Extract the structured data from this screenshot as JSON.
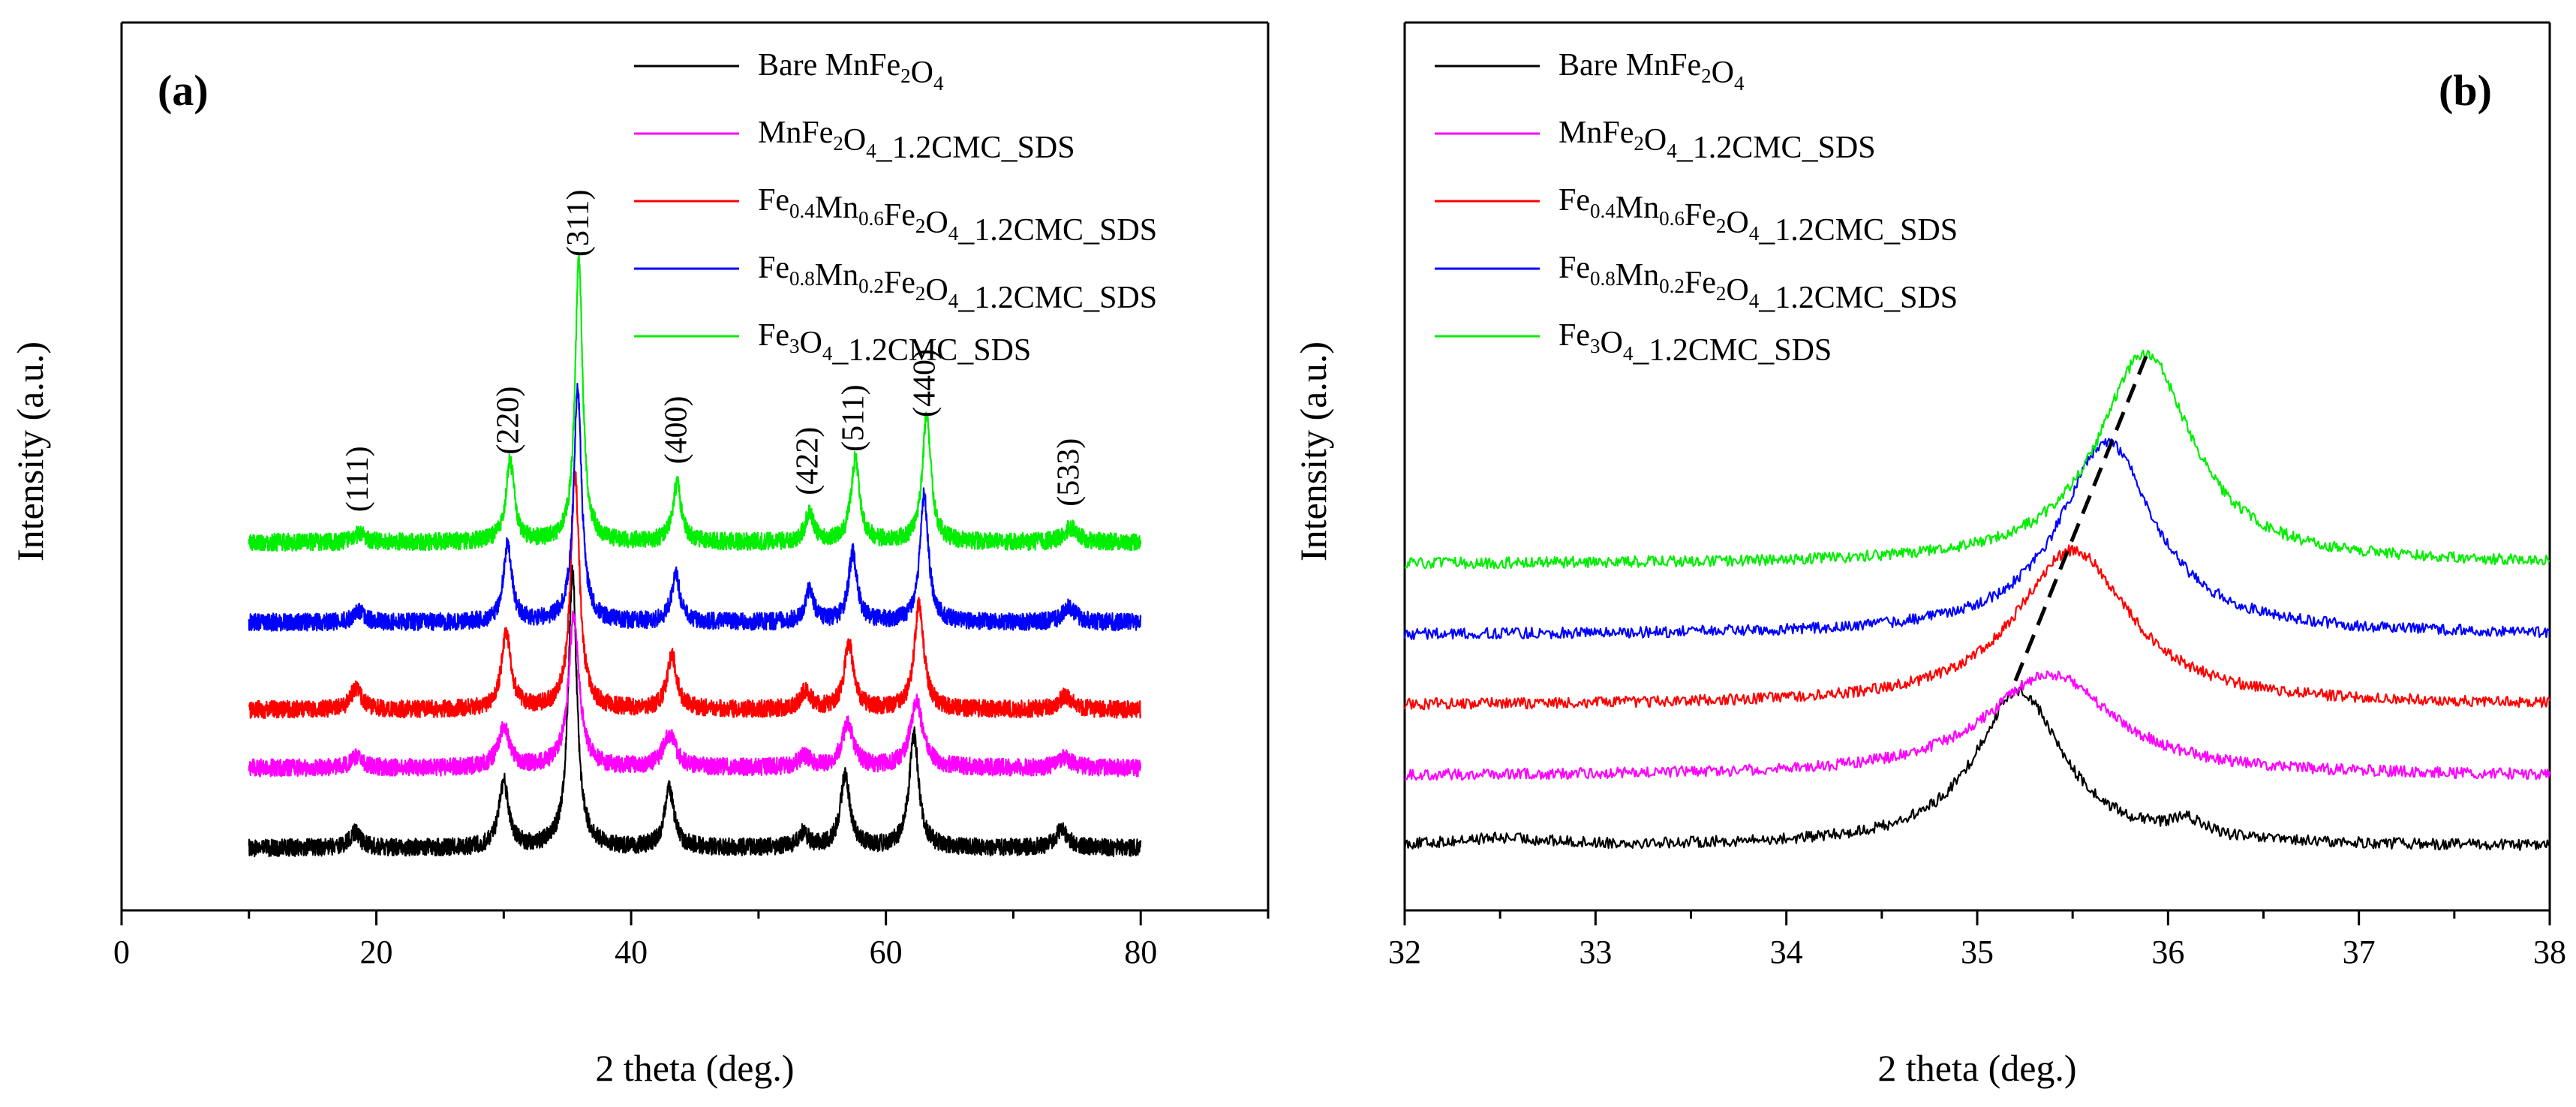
{
  "chart_data": [
    {
      "type": "line",
      "panel_label": "(a)",
      "title": "",
      "xlabel": "2 theta (deg.)",
      "ylabel": "Intensity (a.u.)",
      "xlim": [
        0,
        90
      ],
      "xticks": [
        "0",
        "20",
        "40",
        "60",
        "80"
      ],
      "yticks": [],
      "legend_position": "top-right",
      "x_range_measured": [
        10,
        80
      ],
      "series": [
        {
          "name": "Bare MnFe2O4",
          "color": "#000000",
          "baseline": 0.0,
          "noise": 0.12,
          "peaks": [
            [
              18.3,
              0.22,
              0.5
            ],
            [
              30.0,
              0.9,
              0.45
            ],
            [
              35.4,
              3.8,
              0.4
            ],
            [
              43.0,
              0.8,
              0.45
            ],
            [
              53.5,
              0.2,
              0.5
            ],
            [
              56.8,
              1.0,
              0.45
            ],
            [
              62.2,
              1.55,
              0.45
            ],
            [
              73.8,
              0.25,
              0.6
            ]
          ]
        },
        {
          "name": "MnFe2O4_1.2CMC_SDS",
          "color": "#ff00ff",
          "baseline": 1.1,
          "noise": 0.12,
          "peaks": [
            [
              18.5,
              0.15,
              0.6
            ],
            [
              30.0,
              0.55,
              0.55
            ],
            [
              35.5,
              2.1,
              0.5
            ],
            [
              43.0,
              0.45,
              0.6
            ],
            [
              53.6,
              0.15,
              0.6
            ],
            [
              57.0,
              0.6,
              0.55
            ],
            [
              62.4,
              0.9,
              0.6
            ],
            [
              74.0,
              0.15,
              0.6
            ]
          ]
        },
        {
          "name": "Fe0.4Mn0.6Fe2O4_1.2CMC_SDS",
          "color": "#ff0000",
          "baseline": 1.9,
          "noise": 0.12,
          "peaks": [
            [
              18.4,
              0.3,
              0.5
            ],
            [
              30.2,
              1.05,
              0.45
            ],
            [
              35.6,
              3.2,
              0.42
            ],
            [
              43.2,
              0.75,
              0.45
            ],
            [
              53.7,
              0.25,
              0.5
            ],
            [
              57.1,
              0.9,
              0.45
            ],
            [
              62.6,
              1.45,
              0.45
            ],
            [
              74.1,
              0.2,
              0.6
            ]
          ]
        },
        {
          "name": "Fe0.8Mn0.2Fe2O4_1.2CMC_SDS",
          "color": "#0000ff",
          "baseline": 3.1,
          "noise": 0.12,
          "peaks": [
            [
              18.6,
              0.15,
              0.5
            ],
            [
              30.3,
              1.05,
              0.4
            ],
            [
              35.8,
              3.2,
              0.38
            ],
            [
              43.5,
              0.65,
              0.4
            ],
            [
              54.0,
              0.45,
              0.4
            ],
            [
              57.4,
              0.95,
              0.4
            ],
            [
              63.0,
              1.75,
              0.4
            ],
            [
              74.4,
              0.2,
              0.6
            ]
          ]
        },
        {
          "name": "Fe3O4_1.2CMC_SDS",
          "color": "#00ee00",
          "baseline": 4.2,
          "noise": 0.12,
          "peaks": [
            [
              18.7,
              0.12,
              0.5
            ],
            [
              30.5,
              1.1,
              0.4
            ],
            [
              35.9,
              3.9,
              0.35
            ],
            [
              43.6,
              0.8,
              0.4
            ],
            [
              54.0,
              0.4,
              0.4
            ],
            [
              57.6,
              1.15,
              0.4
            ],
            [
              63.2,
              1.75,
              0.4
            ],
            [
              74.5,
              0.2,
              0.6
            ]
          ]
        }
      ],
      "annotations": [
        {
          "text": "(111)",
          "x": 18.5
        },
        {
          "text": "(220)",
          "x": 30.3
        },
        {
          "text": "(311)",
          "x": 35.8
        },
        {
          "text": "(400)",
          "x": 43.5
        },
        {
          "text": "(422)",
          "x": 53.8
        },
        {
          "text": "(511)",
          "x": 57.4
        },
        {
          "text": "(440)",
          "x": 63.0
        },
        {
          "text": "(533)",
          "x": 74.3
        }
      ]
    },
    {
      "type": "line",
      "panel_label": "(b)",
      "title": "",
      "xlabel": "2 theta (deg.)",
      "ylabel": "Intensity (a.u.)",
      "xlim": [
        32,
        38
      ],
      "xticks": [
        "32",
        "33",
        "34",
        "35",
        "36",
        "37",
        "38"
      ],
      "yticks": [],
      "legend_position": "top-left",
      "series": [
        {
          "name": "Bare MnFe2O4",
          "color": "#000000",
          "baseline": 0.0,
          "noise": 0.08,
          "peaks": [
            [
              35.22,
              2.2,
              0.28
            ],
            [
              36.1,
              0.22,
              0.12
            ],
            [
              32.5,
              0.1,
              0.3
            ]
          ]
        },
        {
          "name": "MnFe2O4_1.2CMC_SDS",
          "color": "#ff00ff",
          "baseline": 1.0,
          "noise": 0.08,
          "peaks": [
            [
              35.38,
              1.45,
              0.4
            ]
          ]
        },
        {
          "name": "Fe0.4Mn0.6Fe2O4_1.2CMC_SDS",
          "color": "#ff0000",
          "baseline": 2.0,
          "noise": 0.08,
          "peaks": [
            [
              35.5,
              2.2,
              0.36
            ]
          ]
        },
        {
          "name": "Fe0.8Mn0.2Fe2O4_1.2CMC_SDS",
          "color": "#0000ff",
          "baseline": 3.0,
          "noise": 0.08,
          "peaks": [
            [
              35.68,
              2.75,
              0.3
            ]
          ]
        },
        {
          "name": "Fe3O4_1.2CMC_SDS",
          "color": "#00ee00",
          "baseline": 4.0,
          "noise": 0.08,
          "peaks": [
            [
              35.88,
              3.0,
              0.3
            ]
          ]
        }
      ],
      "guide_line": {
        "style": "dashed",
        "color": "#000000",
        "from": [
          35.2,
          2.35
        ],
        "to": [
          35.9,
          7.05
        ]
      }
    }
  ],
  "legend_labels": [
    {
      "parts": [
        [
          "Bare MnFe",
          ""
        ],
        [
          "2",
          "sub"
        ],
        [
          "O",
          ""
        ],
        [
          "4",
          "sub"
        ]
      ]
    },
    {
      "parts": [
        [
          "MnFe",
          ""
        ],
        [
          "2",
          "sub"
        ],
        [
          "O",
          ""
        ],
        [
          "4",
          "sub"
        ],
        [
          "_1.2CMC_SDS",
          ""
        ]
      ]
    },
    {
      "parts": [
        [
          "Fe",
          ""
        ],
        [
          "0.4",
          "sub"
        ],
        [
          "Mn",
          ""
        ],
        [
          "0.6",
          "sub"
        ],
        [
          "Fe",
          ""
        ],
        [
          "2",
          "sub"
        ],
        [
          "O",
          ""
        ],
        [
          "4",
          "sub"
        ],
        [
          "_1.2CMC_SDS",
          ""
        ]
      ]
    },
    {
      "parts": [
        [
          "Fe",
          ""
        ],
        [
          "0.8",
          "sub"
        ],
        [
          "Mn",
          ""
        ],
        [
          "0.2",
          "sub"
        ],
        [
          "Fe",
          ""
        ],
        [
          "2",
          "sub"
        ],
        [
          "O",
          ""
        ],
        [
          "4",
          "sub"
        ],
        [
          "_1.2CMC_SDS",
          ""
        ]
      ]
    },
    {
      "parts": [
        [
          "Fe",
          ""
        ],
        [
          "3",
          "sub"
        ],
        [
          "O",
          ""
        ],
        [
          "4",
          "sub"
        ],
        [
          "_1.2CMC_SDS",
          ""
        ]
      ]
    }
  ]
}
